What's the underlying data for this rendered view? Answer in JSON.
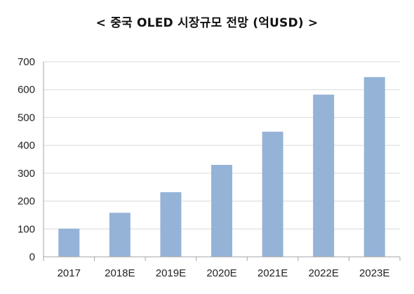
{
  "chart_data": {
    "type": "bar",
    "title": "< 중국 OLED 시장규모 전망 (억USD) >",
    "categories": [
      "2017",
      "2018E",
      "2019E",
      "2020E",
      "2021E",
      "2022E",
      "2023E"
    ],
    "values": [
      101,
      158,
      232,
      330,
      449,
      582,
      645
    ],
    "ylim": [
      0,
      700
    ],
    "yticks": [
      0,
      100,
      200,
      300,
      400,
      500,
      600,
      700
    ],
    "grid": true,
    "legend": "none",
    "colors": {
      "bar": "#95B3D7",
      "grid": "#D9D9D9",
      "axis": "#A6A6A6"
    }
  }
}
